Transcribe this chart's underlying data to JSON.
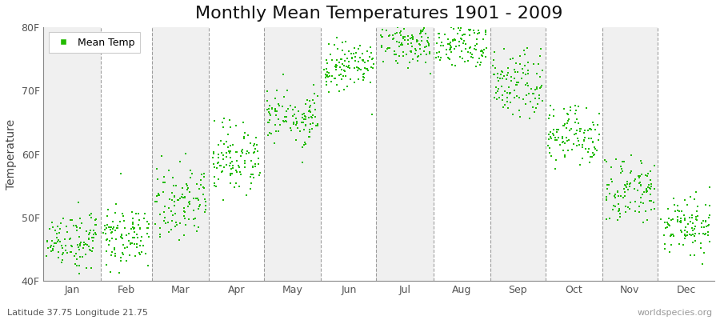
{
  "title": "Monthly Mean Temperatures 1901 - 2009",
  "ylabel": "Temperature",
  "xlabel_labels": [
    "Jan",
    "Feb",
    "Mar",
    "Apr",
    "May",
    "Jun",
    "Jul",
    "Aug",
    "Sep",
    "Oct",
    "Nov",
    "Dec"
  ],
  "ytick_labels": [
    "40F",
    "50F",
    "60F",
    "70F",
    "80F"
  ],
  "ytick_values": [
    40,
    50,
    60,
    70,
    80
  ],
  "ylim": [
    40,
    80
  ],
  "dot_color": "#22bb00",
  "dot_size": 3,
  "legend_label": "Mean Temp",
  "subtitle": "Latitude 37.75 Longitude 21.75",
  "watermark": "worldspecies.org",
  "bg_color": "#ffffff",
  "band_color_odd": "#f0f0f0",
  "band_color_even": "#ffffff",
  "title_fontsize": 16,
  "monthly_means_F": [
    46.5,
    47.0,
    52.0,
    59.0,
    66.0,
    73.5,
    77.5,
    77.0,
    71.0,
    62.5,
    54.0,
    48.5
  ],
  "monthly_stds_F": [
    2.5,
    2.5,
    2.5,
    2.5,
    2.5,
    2.0,
    2.0,
    2.0,
    2.5,
    2.5,
    2.5,
    2.5
  ],
  "num_years": 109,
  "start_year": 1901,
  "vline_color": "#888888",
  "spine_color": "#888888"
}
